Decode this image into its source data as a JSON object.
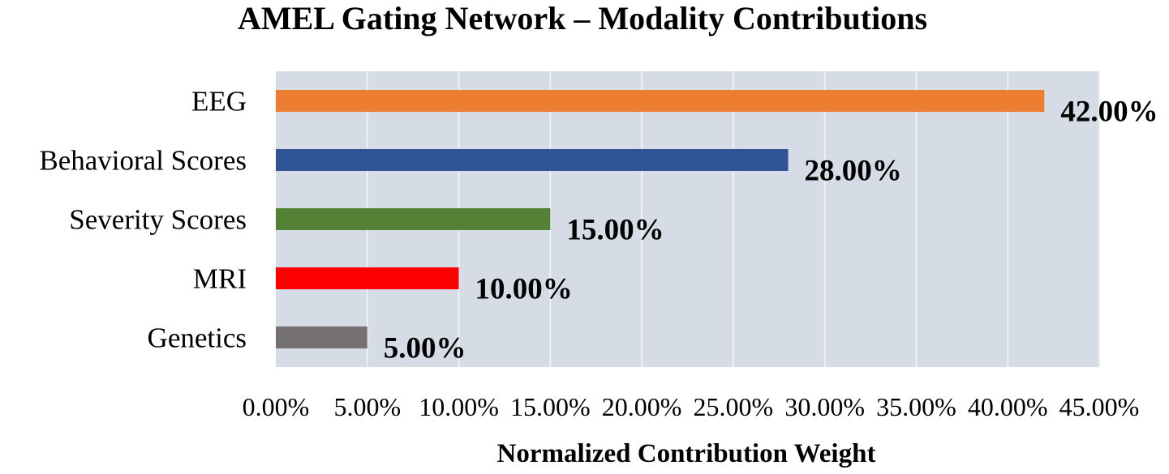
{
  "chart_data": {
    "type": "bar",
    "orientation": "horizontal",
    "title": "AMEL Gating Network – Modality Contributions",
    "xlabel": "Normalized Contribution Weight",
    "ylabel": "",
    "categories": [
      "EEG",
      "Behavioral Scores",
      "Severity Scores",
      "MRI",
      "Genetics"
    ],
    "values": [
      0.42,
      0.28,
      0.15,
      0.1,
      0.05
    ],
    "data_labels": [
      "42.00%",
      "28.00%",
      "15.00%",
      "10.00%",
      "5.00%"
    ],
    "colors": [
      "#ED7D31",
      "#2F5597",
      "#548235",
      "#FF0000",
      "#767171"
    ],
    "xlim": [
      0,
      0.45
    ],
    "xticks": [
      0,
      0.05,
      0.1,
      0.15,
      0.2,
      0.25,
      0.3,
      0.35,
      0.4,
      0.45
    ],
    "xtick_labels": [
      "0.00%",
      "5.00%",
      "10.00%",
      "15.00%",
      "20.00%",
      "25.00%",
      "30.00%",
      "35.00%",
      "40.00%",
      "45.00%"
    ],
    "grid": true,
    "plot_background": "#D6DCE5",
    "gridline_color": "#EEF0F4"
  }
}
